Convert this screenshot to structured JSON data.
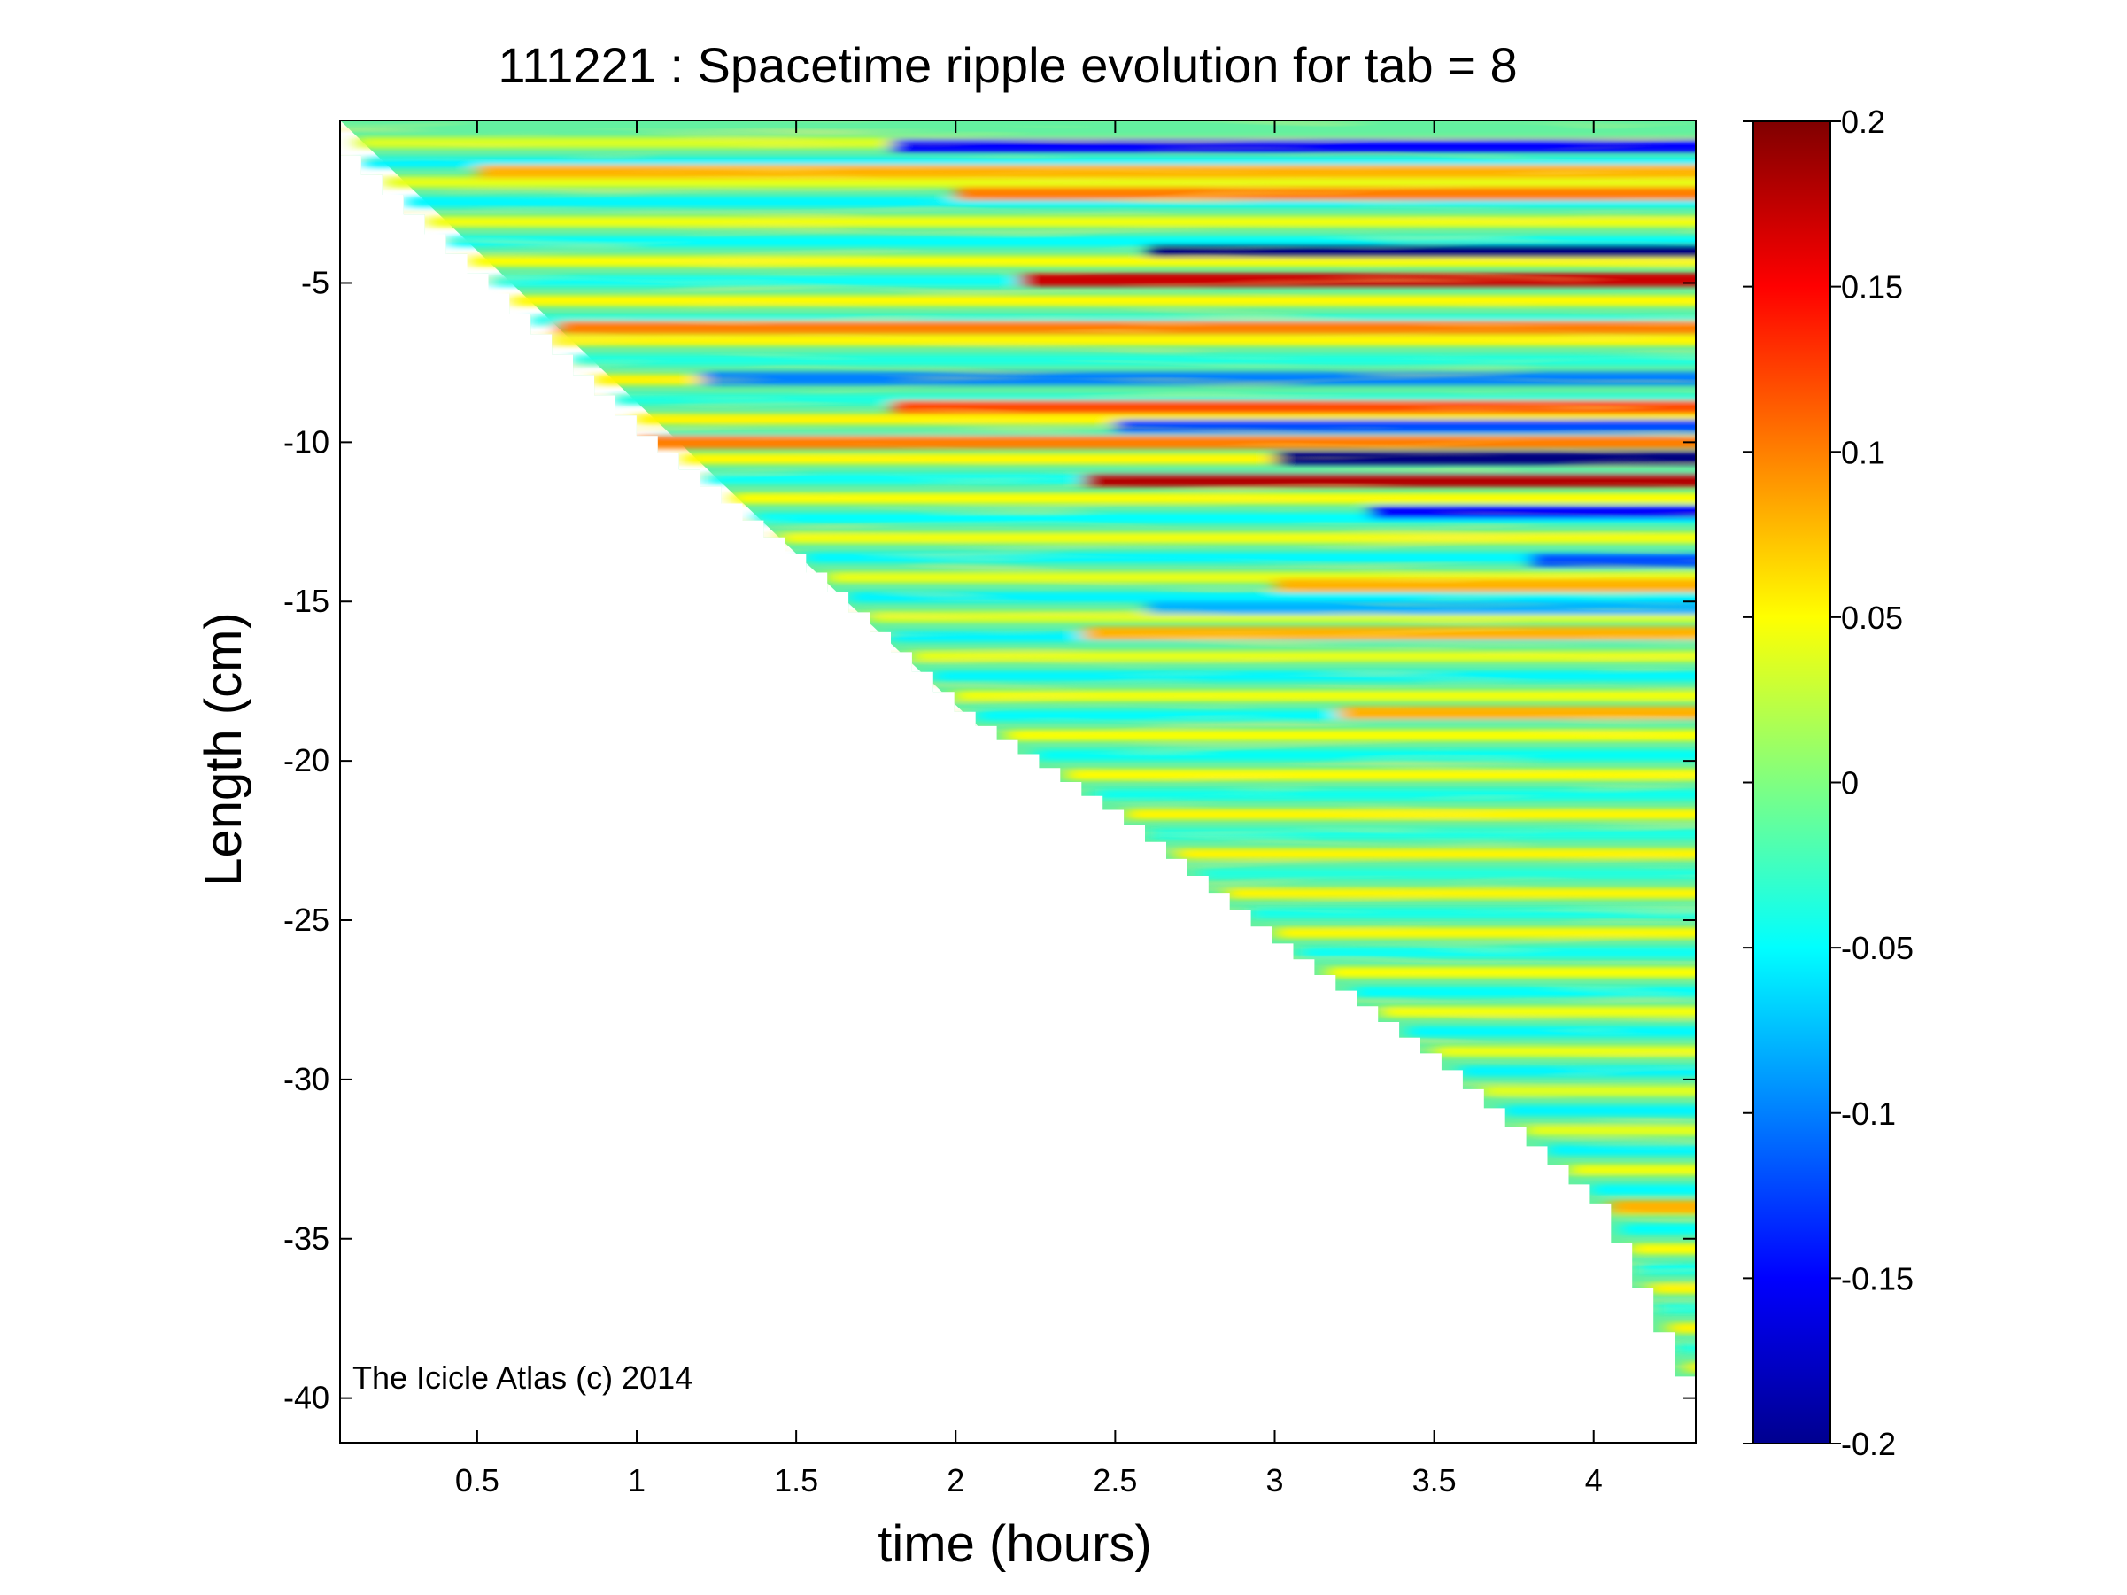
{
  "chart_data": {
    "type": "heatmap",
    "title": "111221 : Spacetime ripple evolution for tab = 8",
    "xlabel": "time (hours)",
    "ylabel": "Length (cm)",
    "xlim": [
      0.07,
      4.32
    ],
    "ylim": [
      -41.4,
      0.1
    ],
    "x_ticks": [
      {
        "value": 0.5,
        "label": "0.5"
      },
      {
        "value": 1,
        "label": "1"
      },
      {
        "value": 1.5,
        "label": "1.5"
      },
      {
        "value": 2,
        "label": "2"
      },
      {
        "value": 2.5,
        "label": "2.5"
      },
      {
        "value": 3,
        "label": "3"
      },
      {
        "value": 3.5,
        "label": "3.5"
      },
      {
        "value": 4,
        "label": "4"
      }
    ],
    "y_ticks": [
      {
        "value": -5,
        "label": "-5"
      },
      {
        "value": -10,
        "label": "-10"
      },
      {
        "value": -15,
        "label": "-15"
      },
      {
        "value": -20,
        "label": "-20"
      },
      {
        "value": -25,
        "label": "-25"
      },
      {
        "value": -30,
        "label": "-30"
      },
      {
        "value": -35,
        "label": "-35"
      },
      {
        "value": -40,
        "label": "-40"
      }
    ],
    "colorbar": {
      "colormap": "jet",
      "range": [
        -0.2,
        0.2
      ],
      "ticks": [
        {
          "value": 0.2,
          "label": "0.2"
        },
        {
          "value": 0.15,
          "label": "0.15"
        },
        {
          "value": 0.1,
          "label": "0.1"
        },
        {
          "value": 0.05,
          "label": "0.05"
        },
        {
          "value": 0,
          "label": "0"
        },
        {
          "value": -0.05,
          "label": "-0.05"
        },
        {
          "value": -0.1,
          "label": "-0.1"
        },
        {
          "value": -0.15,
          "label": "-0.15"
        },
        {
          "value": -0.2,
          "label": "-0.2"
        }
      ]
    },
    "front_boundary": [
      [
        0.07,
        -1.0
      ],
      [
        0.5,
        -5.0
      ],
      [
        1.0,
        -9.8
      ],
      [
        1.5,
        -13.8
      ],
      [
        2.0,
        -18.5
      ],
      [
        2.5,
        -21.8
      ],
      [
        3.0,
        -25.8
      ],
      [
        3.5,
        -29.5
      ],
      [
        4.0,
        -34.0
      ],
      [
        4.3,
        -40.3
      ]
    ],
    "notable_bands": [
      {
        "length": -0.7,
        "t_start": 1.8,
        "value": -0.15
      },
      {
        "length": -1.5,
        "t_start": 0.5,
        "value": 0.08
      },
      {
        "length": -2.2,
        "t_start": 2.0,
        "value": 0.1
      },
      {
        "length": -4.0,
        "t_start": 2.6,
        "value": -0.2
      },
      {
        "length": -4.9,
        "t_start": 2.2,
        "value": 0.17
      },
      {
        "length": -6.4,
        "t_start": 0.75,
        "value": 0.1
      },
      {
        "length": -8.0,
        "t_start": 1.2,
        "value": -0.1
      },
      {
        "length": -8.9,
        "t_start": 1.8,
        "value": 0.12
      },
      {
        "length": -9.5,
        "t_start": 2.5,
        "value": -0.12
      },
      {
        "length": -10.0,
        "t_start": 1.0,
        "value": 0.1
      },
      {
        "length": -10.5,
        "t_start": 3.0,
        "value": -0.2
      },
      {
        "length": -11.2,
        "t_start": 2.4,
        "value": 0.18
      },
      {
        "length": -12.2,
        "t_start": 3.3,
        "value": -0.15
      },
      {
        "length": -13.7,
        "t_start": 3.8,
        "value": -0.12
      },
      {
        "length": -14.5,
        "t_start": 3.0,
        "value": 0.08
      },
      {
        "length": -15.2,
        "t_start": 2.6,
        "value": -0.08
      },
      {
        "length": -16.0,
        "t_start": 2.4,
        "value": 0.08
      },
      {
        "length": -18.5,
        "t_start": 3.2,
        "value": 0.08
      },
      {
        "length": -34.0,
        "t_start": 4.05,
        "value": 0.08
      }
    ],
    "annotation": "The Icicle Atlas (c) 2014"
  }
}
